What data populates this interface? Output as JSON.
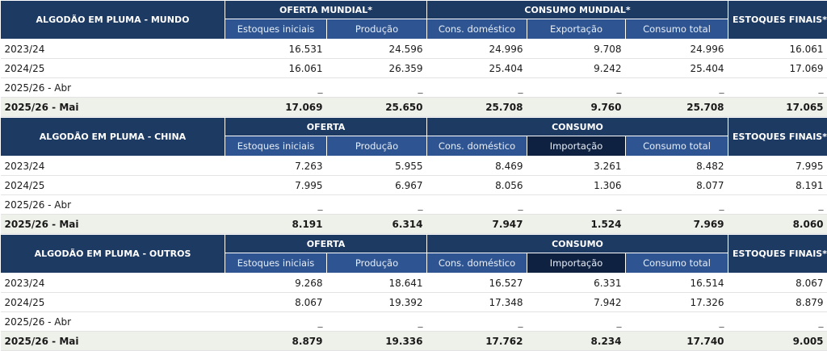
{
  "sections": [
    {
      "title": "ALGODÃO EM PLUMA - MUNDO",
      "group1": "OFERTA MUNDIAL*",
      "group2": "CONSUMO MUNDIAL*",
      "stock": "ESTOQUES FINAIS*",
      "subheaders": [
        "Estoques iniciais",
        "Produção",
        "Cons. doméstico",
        "Exportação",
        "Consumo total"
      ],
      "rows": [
        {
          "label": "2023/24",
          "values": [
            "16.531",
            "24.596",
            "24.996",
            "9.708",
            "24.996",
            "16.061"
          ]
        },
        {
          "label": "2024/25",
          "values": [
            "16.061",
            "26.359",
            "25.404",
            "9.242",
            "25.404",
            "17.069"
          ]
        },
        {
          "label": "2025/26 - Abr",
          "values": [
            "_",
            "_",
            "_",
            "_",
            "_",
            "_"
          ]
        },
        {
          "label": "2025/26 - Mai",
          "values": [
            "17.069",
            "25.650",
            "25.708",
            "9.760",
            "25.708",
            "17.065"
          ]
        }
      ]
    },
    {
      "title": "ALGODÃO EM PLUMA - CHINA",
      "group1": "OFERTA",
      "group2": "CONSUMO",
      "stock": "ESTOQUES FINAIS*",
      "subheaders": [
        "Estoques iniciais",
        "Produção",
        "Cons. doméstico",
        "Importação",
        "Consumo total"
      ],
      "rows": [
        {
          "label": "2023/24",
          "values": [
            "7.263",
            "5.955",
            "8.469",
            "3.261",
            "8.482",
            "7.995"
          ]
        },
        {
          "label": "2024/25",
          "values": [
            "7.995",
            "6.967",
            "8.056",
            "1.306",
            "8.077",
            "8.191"
          ]
        },
        {
          "label": "2025/26 - Abr",
          "values": [
            "_",
            "_",
            "_",
            "_",
            "_",
            "_"
          ]
        },
        {
          "label": "2025/26 - Mai",
          "values": [
            "8.191",
            "6.314",
            "7.947",
            "1.524",
            "7.969",
            "8.060"
          ]
        }
      ]
    },
    {
      "title": "ALGODÃO EM PLUMA - OUTROS",
      "group1": "OFERTA",
      "group2": "CONSUMO",
      "stock": "ESTOQUES FINAIS*",
      "subheaders": [
        "Estoques iniciais",
        "Produção",
        "Cons. doméstico",
        "Importação",
        "Consumo total"
      ],
      "rows": [
        {
          "label": "2023/24",
          "values": [
            "9.268",
            "18.641",
            "16.527",
            "6.331",
            "16.514",
            "8.067"
          ]
        },
        {
          "label": "2024/25",
          "values": [
            "8.067",
            "19.392",
            "17.348",
            "7.942",
            "17.326",
            "8.879"
          ]
        },
        {
          "label": "2025/26 - Abr",
          "values": [
            "_",
            "_",
            "_",
            "_",
            "_",
            "_"
          ]
        },
        {
          "label": "2025/26 - Mai",
          "values": [
            "8.879",
            "19.336",
            "17.762",
            "8.234",
            "17.740",
            "9.005"
          ]
        }
      ]
    }
  ]
}
